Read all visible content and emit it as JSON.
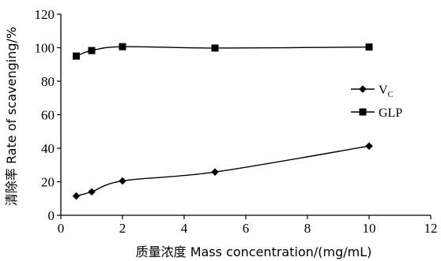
{
  "chart_data": {
    "type": "line",
    "xlabel": "质量浓度 Mass concentration/(mg/mL)",
    "ylabel": "清除率 Rate of scavenging/%",
    "xlim": [
      0,
      12
    ],
    "ylim": [
      0,
      120
    ],
    "x_ticks": [
      0,
      2,
      4,
      6,
      8,
      10,
      12
    ],
    "y_ticks": [
      0,
      20,
      40,
      60,
      80,
      100,
      120
    ],
    "grid": false,
    "legend_position": "right",
    "series": [
      {
        "name": "V",
        "name_sub": "C",
        "marker": "diamond",
        "color": "#000000",
        "x": [
          0.5,
          1,
          2,
          5,
          10
        ],
        "y": [
          11.5,
          14,
          20.5,
          25.8,
          41.3
        ]
      },
      {
        "name": "GLP",
        "marker": "square",
        "color": "#000000",
        "x": [
          0.5,
          1,
          2,
          5,
          10
        ],
        "y": [
          95,
          98.3,
          100.6,
          99.8,
          100.4
        ]
      }
    ]
  }
}
